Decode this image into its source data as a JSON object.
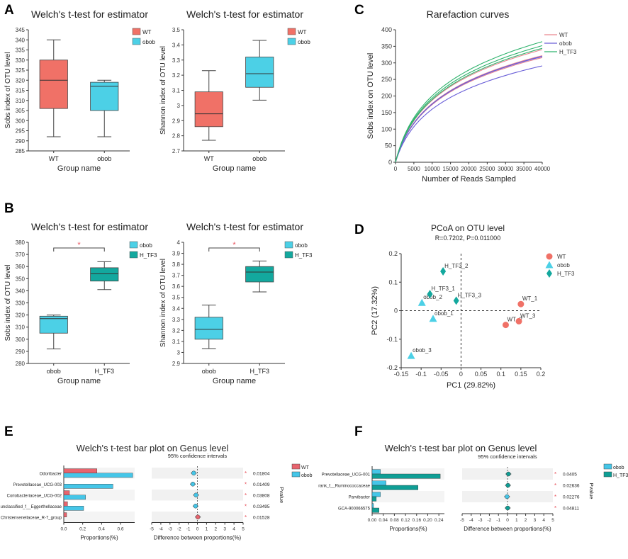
{
  "panel_labels": {
    "A": "A",
    "B": "B",
    "C": "C",
    "D": "D",
    "E": "E",
    "F": "F"
  },
  "colors": {
    "wt": "#f07167",
    "obob": "#4cd0e6",
    "h_tf3": "#13a89e",
    "bar_wt": "#e8646e",
    "bar_obob": "#45c6e8",
    "bar_htf3": "#0f9e95",
    "star": "#e8505b",
    "rare_wt": "#e9868f",
    "rare_obob": "#6a5fd8",
    "rare_htf3": "#2fb36d"
  },
  "chart_data": [
    {
      "id": "A1",
      "type": "box",
      "title": "Welch's t-test for estimator",
      "xlabel": "Group name",
      "ylabel": "Sobs index of OTU level",
      "ylim": [
        285,
        345
      ],
      "yticks": [
        285,
        290,
        295,
        300,
        305,
        310,
        315,
        320,
        325,
        330,
        335,
        340,
        345
      ],
      "legend": [
        "WT",
        "obob"
      ],
      "groups": [
        {
          "name": "WT",
          "color_key": "wt",
          "min": 292,
          "q1": 306,
          "median": 320,
          "q3": 330,
          "max": 340
        },
        {
          "name": "obob",
          "color_key": "obob",
          "min": 292,
          "q1": 305,
          "median": 317,
          "q3": 319,
          "max": 320
        }
      ]
    },
    {
      "id": "A2",
      "type": "box",
      "title": "Welch's t-test for estimator",
      "xlabel": "Group name",
      "ylabel": "Shannon index of OTU level",
      "ylim": [
        2.7,
        3.5
      ],
      "yticks": [
        2.7,
        2.8,
        2.9,
        3,
        3.1,
        3.2,
        3.3,
        3.4,
        3.5
      ],
      "legend": [
        "WT",
        "obob"
      ],
      "groups": [
        {
          "name": "WT",
          "color_key": "wt",
          "min": 2.77,
          "q1": 2.86,
          "median": 2.945,
          "q3": 3.09,
          "max": 3.23
        },
        {
          "name": "obob",
          "color_key": "obob",
          "min": 3.035,
          "q1": 3.12,
          "median": 3.21,
          "q3": 3.32,
          "max": 3.43
        }
      ]
    },
    {
      "id": "B1",
      "type": "box",
      "title": "Welch's t-test for estimator",
      "xlabel": "Group name",
      "ylabel": "Sobs index of OTU level",
      "ylim": [
        280,
        380
      ],
      "yticks": [
        280,
        290,
        300,
        310,
        320,
        330,
        340,
        350,
        360,
        370,
        380
      ],
      "legend": [
        "obob",
        "H_TF3"
      ],
      "significance": "*",
      "groups": [
        {
          "name": "obob",
          "color_key": "obob",
          "min": 292,
          "q1": 305,
          "median": 317,
          "q3": 319,
          "max": 320
        },
        {
          "name": "H_TF3",
          "color_key": "h_tf3",
          "min": 341,
          "q1": 348,
          "median": 354,
          "q3": 359,
          "max": 364
        }
      ]
    },
    {
      "id": "B2",
      "type": "box",
      "title": "Welch's t-test for estimator",
      "xlabel": "Group name",
      "ylabel": "Shannon index of OTU level",
      "ylim": [
        2.9,
        4
      ],
      "yticks": [
        2.9,
        3,
        3.1,
        3.2,
        3.3,
        3.4,
        3.5,
        3.6,
        3.7,
        3.8,
        3.9,
        4
      ],
      "legend": [
        "obob",
        "H_TF3"
      ],
      "significance": "*",
      "groups": [
        {
          "name": "obob",
          "color_key": "obob",
          "min": 3.035,
          "q1": 3.12,
          "median": 3.21,
          "q3": 3.32,
          "max": 3.43
        },
        {
          "name": "H_TF3",
          "color_key": "h_tf3",
          "min": 3.55,
          "q1": 3.64,
          "median": 3.73,
          "q3": 3.78,
          "max": 3.83
        }
      ]
    },
    {
      "id": "C",
      "type": "line",
      "title": "Rarefaction curves",
      "xlabel": "Number of Reads Sampled",
      "ylabel": "Sobs index on OTU level",
      "xlim": [
        0,
        40000
      ],
      "ylim": [
        0,
        400
      ],
      "xticks": [
        0,
        5000,
        10000,
        15000,
        20000,
        25000,
        30000,
        35000,
        40000
      ],
      "yticks": [
        0,
        50,
        100,
        150,
        200,
        250,
        300,
        350,
        400
      ],
      "legend": [
        "WT",
        "obob",
        "H_TF3"
      ],
      "series": [
        {
          "name": "WT",
          "color_key": "rare_wt",
          "final": 322
        },
        {
          "name": "WT",
          "color_key": "rare_wt",
          "final": 340
        },
        {
          "name": "WT",
          "color_key": "rare_wt",
          "final": 316
        },
        {
          "name": "obob",
          "color_key": "rare_obob",
          "final": 319
        },
        {
          "name": "obob",
          "color_key": "rare_obob",
          "final": 291
        },
        {
          "name": "obob",
          "color_key": "rare_obob",
          "final": 320
        },
        {
          "name": "H_TF3",
          "color_key": "rare_htf3",
          "final": 364
        },
        {
          "name": "H_TF3",
          "color_key": "rare_htf3",
          "final": 352
        },
        {
          "name": "H_TF3",
          "color_key": "rare_htf3",
          "final": 344
        }
      ]
    },
    {
      "id": "D",
      "type": "scatter",
      "title": "PCoA on OTU level",
      "subtitle": "R=0.7202, P=0.011000",
      "xlabel": "PC1 (29.82%)",
      "ylabel": "PC2 (17.32%)",
      "xlim": [
        -0.15,
        0.2
      ],
      "ylim": [
        -0.2,
        0.2
      ],
      "xticks": [
        -0.15,
        -0.1,
        -0.05,
        0,
        0.05,
        0.1,
        0.15,
        0.2
      ],
      "yticks": [
        -0.2,
        -0.1,
        0,
        0.1,
        0.2
      ],
      "legend": [
        "WT",
        "obob",
        "H_TF3"
      ],
      "points": [
        {
          "label": "WT_1",
          "group": "wt",
          "x": 0.15,
          "y": 0.023
        },
        {
          "label": "WT_2",
          "group": "wt",
          "x": 0.112,
          "y": -0.05
        },
        {
          "label": "WT_3",
          "group": "wt",
          "x": 0.145,
          "y": -0.037
        },
        {
          "label": "obob_1",
          "group": "obob",
          "x": -0.07,
          "y": -0.028
        },
        {
          "label": "obob_2",
          "group": "obob",
          "x": -0.098,
          "y": 0.028
        },
        {
          "label": "obob_3",
          "group": "obob",
          "x": -0.125,
          "y": -0.158
        },
        {
          "label": "H_TF3_1",
          "group": "h_tf3",
          "x": -0.078,
          "y": 0.058
        },
        {
          "label": "H_TF3_2",
          "group": "h_tf3",
          "x": -0.045,
          "y": 0.138
        },
        {
          "label": "H_TF3_3",
          "group": "h_tf3",
          "x": -0.012,
          "y": 0.035
        }
      ]
    },
    {
      "id": "E",
      "type": "bar",
      "title": "Welch's t-test bar plot on Genus level",
      "xlabel": "Proportions(%)",
      "xlim": [
        0,
        0.75
      ],
      "xticks": [
        0,
        0.2,
        0.4,
        0.6
      ],
      "xtick_labels": [
        "0.0",
        "0.2",
        "0.4",
        "0.6"
      ],
      "legend": [
        "WT",
        "obob"
      ],
      "ci_title": "95% confidence intervals",
      "ci_xlabel": "Difference between proportions(%)",
      "ci_ticks": [
        -5,
        -4,
        -3,
        -2,
        -1,
        0,
        1,
        2,
        3,
        4,
        5
      ],
      "pvalue_label": "Pvalue",
      "categories": [
        "Odoribacter",
        "Prevotellaceae_UCG-003",
        "Coriobacteriaceae_UCG-002",
        "unclassified_f__Eggerthellaceae",
        "Christensenellaceae_R-7_group"
      ],
      "series": [
        {
          "name": "WT",
          "color_key": "bar_wt",
          "values": [
            0.35,
            0.0,
            0.06,
            0.04,
            0.03
          ]
        },
        {
          "name": "obob",
          "color_key": "bar_obob",
          "values": [
            0.73,
            0.52,
            0.23,
            0.21,
            0.0
          ]
        }
      ],
      "diff": [
        -0.4,
        -0.5,
        -0.15,
        -0.2,
        0.05
      ],
      "pvalues": [
        "0.01804",
        "0.01409",
        "0.03808",
        "0.03495",
        "0.01528"
      ],
      "ci_colors": [
        "bar_obob",
        "bar_obob",
        "bar_obob",
        "bar_obob",
        "bar_wt"
      ]
    },
    {
      "id": "F",
      "type": "bar",
      "title": "Welch's t-test bar plot on Genus level",
      "xlabel": "Proportions(%)",
      "xlim": [
        0,
        0.26
      ],
      "xticks": [
        0,
        0.04,
        0.08,
        0.12,
        0.16,
        0.2,
        0.24
      ],
      "xtick_labels": [
        "0.00",
        "0.04",
        "0.08",
        "0.12",
        "0.16",
        "0.20",
        "0.24"
      ],
      "legend": [
        "obob",
        "H_TF3"
      ],
      "ci_title": "95% confidence intervals",
      "ci_xlabel": "Difference between proportions(%)",
      "ci_ticks": [
        -5,
        -4,
        -3,
        -2,
        -1,
        0,
        1,
        2,
        3,
        4,
        5
      ],
      "pvalue_label": "Pvalue",
      "categories": [
        "Prevotellaceae_UCG-001",
        "rank_f__Ruminococcaceae",
        "Parvibacter",
        "GCA-900066575"
      ],
      "series": [
        {
          "name": "obob",
          "color_key": "bar_obob",
          "values": [
            0.03,
            0.05,
            0.03,
            0.005
          ]
        },
        {
          "name": "H_TF3",
          "color_key": "bar_htf3",
          "values": [
            0.245,
            0.165,
            0.015,
            0.025
          ]
        }
      ],
      "diff": [
        0.1,
        0.05,
        -0.05,
        0.02
      ],
      "pvalues": [
        "0.0405",
        "0.02636",
        "0.02276",
        "0.04811"
      ],
      "ci_colors": [
        "bar_htf3",
        "bar_htf3",
        "bar_obob",
        "bar_htf3"
      ]
    }
  ]
}
